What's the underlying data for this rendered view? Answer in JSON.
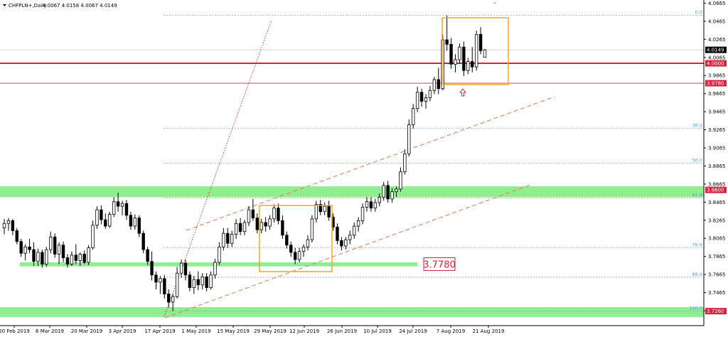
{
  "header": {
    "symbol": "CHFPLN+,Daily",
    "ohlc": "4.0067 4.0158 4.0067 4.0149"
  },
  "colors": {
    "support_zone": "#90ee90",
    "resistance_line": "#d6223c",
    "box": "#f5a623",
    "channel": "#e8744a",
    "fib_line": "#7aa8d8",
    "candle_up": "#ffffff",
    "candle_down": "#000000"
  },
  "chart_data": {
    "type": "candlestick",
    "ylim": [
      3.71,
      4.07
    ],
    "y_ticks": [
      "4.0665",
      "4.0465",
      "4.0265",
      "4.0065",
      "3.9865",
      "3.9665",
      "3.9465",
      "3.9265",
      "3.9065",
      "3.8865",
      "3.8665",
      "3.8465",
      "3.8265",
      "3.8065",
      "3.7865",
      "3.7665",
      "3.7465",
      "3.7265"
    ],
    "x_ticks": [
      "20 Feb 2019",
      "6 Mar 2019",
      "20 Mar 2019",
      "3 Apr 2019",
      "17 Apr 2019",
      "1 May 2019",
      "15 May 2019",
      "29 May 2019",
      "12 Jun 2019",
      "26 Jun 2019",
      "10 Jul 2019",
      "24 Jul 2019",
      "7 Aug 2019",
      "21 Aug 2019"
    ],
    "price_labels": [
      {
        "value": 4.0149,
        "text": "4.0149",
        "style": "current"
      },
      {
        "value": 4.0,
        "text": "4.0000",
        "style": "resistance"
      },
      {
        "value": 3.978,
        "text": "3.9780",
        "style": "level"
      },
      {
        "value": 3.86,
        "text": "3.8600",
        "style": "support"
      },
      {
        "value": 3.726,
        "text": "3.7260",
        "style": "support"
      }
    ],
    "fib_levels": [
      {
        "label": "0.0",
        "value": 4.053
      },
      {
        "label": "38.2",
        "value": 3.928
      },
      {
        "label": "50.0",
        "value": 3.8895
      },
      {
        "label": "61.8",
        "value": 3.851
      },
      {
        "label": "78.6",
        "value": 3.796
      },
      {
        "label": "88.6",
        "value": 3.7635
      },
      {
        "label": "100.0",
        "value": 3.726
      }
    ],
    "zones": [
      {
        "from": 3.852,
        "to": 3.864,
        "start": 0
      },
      {
        "from": 3.7195,
        "to": 3.7305,
        "start": 0
      },
      {
        "from": 3.7755,
        "to": 3.78,
        "start": 28,
        "end": 587
      }
    ],
    "callout": {
      "text": "3.7780",
      "value": 3.778
    },
    "candles": [
      {
        "o": 3.818,
        "h": 3.828,
        "l": 3.811,
        "c": 3.823
      },
      {
        "o": 3.823,
        "h": 3.829,
        "l": 3.815,
        "c": 3.826
      },
      {
        "o": 3.826,
        "h": 3.828,
        "l": 3.81,
        "c": 3.815
      },
      {
        "o": 3.815,
        "h": 3.818,
        "l": 3.8,
        "c": 3.803
      },
      {
        "o": 3.803,
        "h": 3.806,
        "l": 3.786,
        "c": 3.79
      },
      {
        "o": 3.79,
        "h": 3.8,
        "l": 3.782,
        "c": 3.797
      },
      {
        "o": 3.797,
        "h": 3.806,
        "l": 3.79,
        "c": 3.794
      },
      {
        "o": 3.794,
        "h": 3.802,
        "l": 3.776,
        "c": 3.781
      },
      {
        "o": 3.781,
        "h": 3.795,
        "l": 3.776,
        "c": 3.791
      },
      {
        "o": 3.791,
        "h": 3.794,
        "l": 3.774,
        "c": 3.778
      },
      {
        "o": 3.778,
        "h": 3.797,
        "l": 3.775,
        "c": 3.794
      },
      {
        "o": 3.794,
        "h": 3.814,
        "l": 3.79,
        "c": 3.808
      },
      {
        "o": 3.808,
        "h": 3.812,
        "l": 3.785,
        "c": 3.789
      },
      {
        "o": 3.789,
        "h": 3.802,
        "l": 3.778,
        "c": 3.799
      },
      {
        "o": 3.799,
        "h": 3.803,
        "l": 3.78,
        "c": 3.785
      },
      {
        "o": 3.785,
        "h": 3.789,
        "l": 3.774,
        "c": 3.778
      },
      {
        "o": 3.778,
        "h": 3.792,
        "l": 3.776,
        "c": 3.788
      },
      {
        "o": 3.788,
        "h": 3.8,
        "l": 3.778,
        "c": 3.782
      },
      {
        "o": 3.782,
        "h": 3.791,
        "l": 3.776,
        "c": 3.789
      },
      {
        "o": 3.789,
        "h": 3.793,
        "l": 3.778,
        "c": 3.78
      },
      {
        "o": 3.78,
        "h": 3.799,
        "l": 3.777,
        "c": 3.796
      },
      {
        "o": 3.796,
        "h": 3.826,
        "l": 3.794,
        "c": 3.821
      },
      {
        "o": 3.821,
        "h": 3.842,
        "l": 3.817,
        "c": 3.838
      },
      {
        "o": 3.838,
        "h": 3.843,
        "l": 3.822,
        "c": 3.827
      },
      {
        "o": 3.827,
        "h": 3.834,
        "l": 3.817,
        "c": 3.82
      },
      {
        "o": 3.82,
        "h": 3.836,
        "l": 3.818,
        "c": 3.833
      },
      {
        "o": 3.833,
        "h": 3.852,
        "l": 3.83,
        "c": 3.847
      },
      {
        "o": 3.847,
        "h": 3.857,
        "l": 3.836,
        "c": 3.842
      },
      {
        "o": 3.842,
        "h": 3.848,
        "l": 3.832,
        "c": 3.845
      },
      {
        "o": 3.845,
        "h": 3.849,
        "l": 3.827,
        "c": 3.832
      },
      {
        "o": 3.832,
        "h": 3.836,
        "l": 3.816,
        "c": 3.82
      },
      {
        "o": 3.82,
        "h": 3.833,
        "l": 3.816,
        "c": 3.829
      },
      {
        "o": 3.829,
        "h": 3.832,
        "l": 3.808,
        "c": 3.812
      },
      {
        "o": 3.812,
        "h": 3.815,
        "l": 3.79,
        "c": 3.794
      },
      {
        "o": 3.794,
        "h": 3.797,
        "l": 3.777,
        "c": 3.781
      },
      {
        "o": 3.781,
        "h": 3.792,
        "l": 3.76,
        "c": 3.766
      },
      {
        "o": 3.766,
        "h": 3.77,
        "l": 3.75,
        "c": 3.758
      },
      {
        "o": 3.758,
        "h": 3.765,
        "l": 3.745,
        "c": 3.762
      },
      {
        "o": 3.762,
        "h": 3.766,
        "l": 3.74,
        "c": 3.745
      },
      {
        "o": 3.745,
        "h": 3.75,
        "l": 3.73,
        "c": 3.736
      },
      {
        "o": 3.736,
        "h": 3.745,
        "l": 3.726,
        "c": 3.742
      },
      {
        "o": 3.742,
        "h": 3.775,
        "l": 3.74,
        "c": 3.768
      },
      {
        "o": 3.768,
        "h": 3.783,
        "l": 3.763,
        "c": 3.779
      },
      {
        "o": 3.779,
        "h": 3.783,
        "l": 3.76,
        "c": 3.766
      },
      {
        "o": 3.766,
        "h": 3.77,
        "l": 3.748,
        "c": 3.752
      },
      {
        "o": 3.752,
        "h": 3.765,
        "l": 3.745,
        "c": 3.761
      },
      {
        "o": 3.761,
        "h": 3.77,
        "l": 3.749,
        "c": 3.755
      },
      {
        "o": 3.755,
        "h": 3.768,
        "l": 3.75,
        "c": 3.764
      },
      {
        "o": 3.764,
        "h": 3.768,
        "l": 3.748,
        "c": 3.752
      },
      {
        "o": 3.752,
        "h": 3.77,
        "l": 3.75,
        "c": 3.766
      },
      {
        "o": 3.766,
        "h": 3.784,
        "l": 3.762,
        "c": 3.78
      },
      {
        "o": 3.78,
        "h": 3.802,
        "l": 3.777,
        "c": 3.797
      },
      {
        "o": 3.797,
        "h": 3.818,
        "l": 3.793,
        "c": 3.812
      },
      {
        "o": 3.812,
        "h": 3.818,
        "l": 3.796,
        "c": 3.801
      },
      {
        "o": 3.801,
        "h": 3.815,
        "l": 3.797,
        "c": 3.811
      },
      {
        "o": 3.811,
        "h": 3.828,
        "l": 3.806,
        "c": 3.823
      },
      {
        "o": 3.823,
        "h": 3.829,
        "l": 3.81,
        "c": 3.814
      },
      {
        "o": 3.814,
        "h": 3.827,
        "l": 3.81,
        "c": 3.824
      },
      {
        "o": 3.824,
        "h": 3.842,
        "l": 3.82,
        "c": 3.838
      },
      {
        "o": 3.838,
        "h": 3.85,
        "l": 3.826,
        "c": 3.829
      },
      {
        "o": 3.829,
        "h": 3.834,
        "l": 3.812,
        "c": 3.816
      },
      {
        "o": 3.816,
        "h": 3.828,
        "l": 3.812,
        "c": 3.824
      },
      {
        "o": 3.824,
        "h": 3.83,
        "l": 3.814,
        "c": 3.82
      },
      {
        "o": 3.82,
        "h": 3.832,
        "l": 3.816,
        "c": 3.828
      },
      {
        "o": 3.828,
        "h": 3.844,
        "l": 3.824,
        "c": 3.84
      },
      {
        "o": 3.84,
        "h": 3.845,
        "l": 3.822,
        "c": 3.826
      },
      {
        "o": 3.826,
        "h": 3.832,
        "l": 3.806,
        "c": 3.81
      },
      {
        "o": 3.81,
        "h": 3.814,
        "l": 3.795,
        "c": 3.799
      },
      {
        "o": 3.799,
        "h": 3.803,
        "l": 3.786,
        "c": 3.791
      },
      {
        "o": 3.791,
        "h": 3.796,
        "l": 3.778,
        "c": 3.783
      },
      {
        "o": 3.783,
        "h": 3.796,
        "l": 3.78,
        "c": 3.792
      },
      {
        "o": 3.792,
        "h": 3.8,
        "l": 3.786,
        "c": 3.797
      },
      {
        "o": 3.797,
        "h": 3.81,
        "l": 3.793,
        "c": 3.805
      },
      {
        "o": 3.805,
        "h": 3.832,
        "l": 3.802,
        "c": 3.828
      },
      {
        "o": 3.828,
        "h": 3.848,
        "l": 3.824,
        "c": 3.844
      },
      {
        "o": 3.844,
        "h": 3.849,
        "l": 3.832,
        "c": 3.836
      },
      {
        "o": 3.836,
        "h": 3.846,
        "l": 3.832,
        "c": 3.842
      },
      {
        "o": 3.842,
        "h": 3.848,
        "l": 3.826,
        "c": 3.83
      },
      {
        "o": 3.83,
        "h": 3.834,
        "l": 3.815,
        "c": 3.819
      },
      {
        "o": 3.819,
        "h": 3.823,
        "l": 3.8,
        "c": 3.804
      },
      {
        "o": 3.804,
        "h": 3.808,
        "l": 3.793,
        "c": 3.798
      },
      {
        "o": 3.798,
        "h": 3.808,
        "l": 3.794,
        "c": 3.805
      },
      {
        "o": 3.805,
        "h": 3.815,
        "l": 3.8,
        "c": 3.81
      },
      {
        "o": 3.81,
        "h": 3.824,
        "l": 3.806,
        "c": 3.82
      },
      {
        "o": 3.82,
        "h": 3.83,
        "l": 3.814,
        "c": 3.826
      },
      {
        "o": 3.826,
        "h": 3.845,
        "l": 3.822,
        "c": 3.841
      },
      {
        "o": 3.841,
        "h": 3.852,
        "l": 3.836,
        "c": 3.847
      },
      {
        "o": 3.847,
        "h": 3.852,
        "l": 3.836,
        "c": 3.84
      },
      {
        "o": 3.84,
        "h": 3.85,
        "l": 3.836,
        "c": 3.846
      },
      {
        "o": 3.846,
        "h": 3.856,
        "l": 3.842,
        "c": 3.852
      },
      {
        "o": 3.852,
        "h": 3.869,
        "l": 3.848,
        "c": 3.865
      },
      {
        "o": 3.865,
        "h": 3.87,
        "l": 3.846,
        "c": 3.85
      },
      {
        "o": 3.85,
        "h": 3.862,
        "l": 3.846,
        "c": 3.858
      },
      {
        "o": 3.858,
        "h": 3.864,
        "l": 3.852,
        "c": 3.861
      },
      {
        "o": 3.861,
        "h": 3.885,
        "l": 3.858,
        "c": 3.88
      },
      {
        "o": 3.88,
        "h": 3.905,
        "l": 3.877,
        "c": 3.9
      },
      {
        "o": 3.9,
        "h": 3.938,
        "l": 3.897,
        "c": 3.932
      },
      {
        "o": 3.932,
        "h": 3.955,
        "l": 3.928,
        "c": 3.95
      },
      {
        "o": 3.95,
        "h": 3.974,
        "l": 3.946,
        "c": 3.968
      },
      {
        "o": 3.968,
        "h": 3.972,
        "l": 3.952,
        "c": 3.958
      },
      {
        "o": 3.958,
        "h": 3.966,
        "l": 3.95,
        "c": 3.962
      },
      {
        "o": 3.962,
        "h": 3.975,
        "l": 3.958,
        "c": 3.97
      },
      {
        "o": 3.97,
        "h": 3.985,
        "l": 3.966,
        "c": 3.982
      },
      {
        "o": 3.982,
        "h": 3.995,
        "l": 3.966,
        "c": 3.972
      },
      {
        "o": 3.972,
        "h": 4.032,
        "l": 3.97,
        "c": 4.026
      },
      {
        "o": 4.026,
        "h": 4.053,
        "l": 4.014,
        "c": 4.021
      },
      {
        "o": 4.021,
        "h": 4.028,
        "l": 3.994,
        "c": 3.999
      },
      {
        "o": 3.999,
        "h": 4.01,
        "l": 3.99,
        "c": 4.004
      },
      {
        "o": 4.004,
        "h": 4.022,
        "l": 4.0,
        "c": 4.018
      },
      {
        "o": 4.018,
        "h": 4.024,
        "l": 3.986,
        "c": 3.992
      },
      {
        "o": 3.992,
        "h": 4.006,
        "l": 3.988,
        "c": 4.002
      },
      {
        "o": 4.002,
        "h": 4.018,
        "l": 3.99,
        "c": 3.996
      },
      {
        "o": 3.996,
        "h": 4.036,
        "l": 3.992,
        "c": 4.032
      },
      {
        "o": 4.032,
        "h": 4.04,
        "l": 4.01,
        "c": 4.014
      },
      {
        "o": 4.0067,
        "h": 4.0158,
        "l": 4.0067,
        "c": 4.0149
      }
    ]
  }
}
